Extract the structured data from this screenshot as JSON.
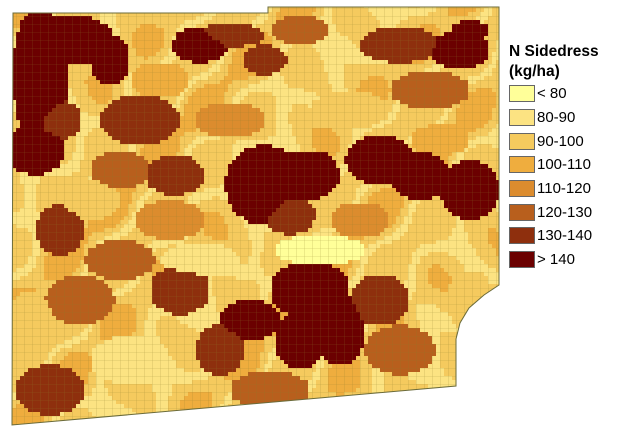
{
  "legend": {
    "title_line1": "N Sidedress",
    "title_line2": "(kg/ha)",
    "classes": [
      {
        "label": "< 80",
        "color": "#ffff99"
      },
      {
        "label": "80-90",
        "color": "#fce382"
      },
      {
        "label": "90-100",
        "color": "#f5ca5e"
      },
      {
        "label": "100-110",
        "color": "#efad3e"
      },
      {
        "label": "110-120",
        "color": "#dc8c2e"
      },
      {
        "label": "120-130",
        "color": "#b85f1d"
      },
      {
        "label": "130-140",
        "color": "#8e2f0d"
      },
      {
        "label": "> 140",
        "color": "#6b0000"
      }
    ]
  },
  "map": {
    "grid_line_color": "#8a7a2a"
  }
}
